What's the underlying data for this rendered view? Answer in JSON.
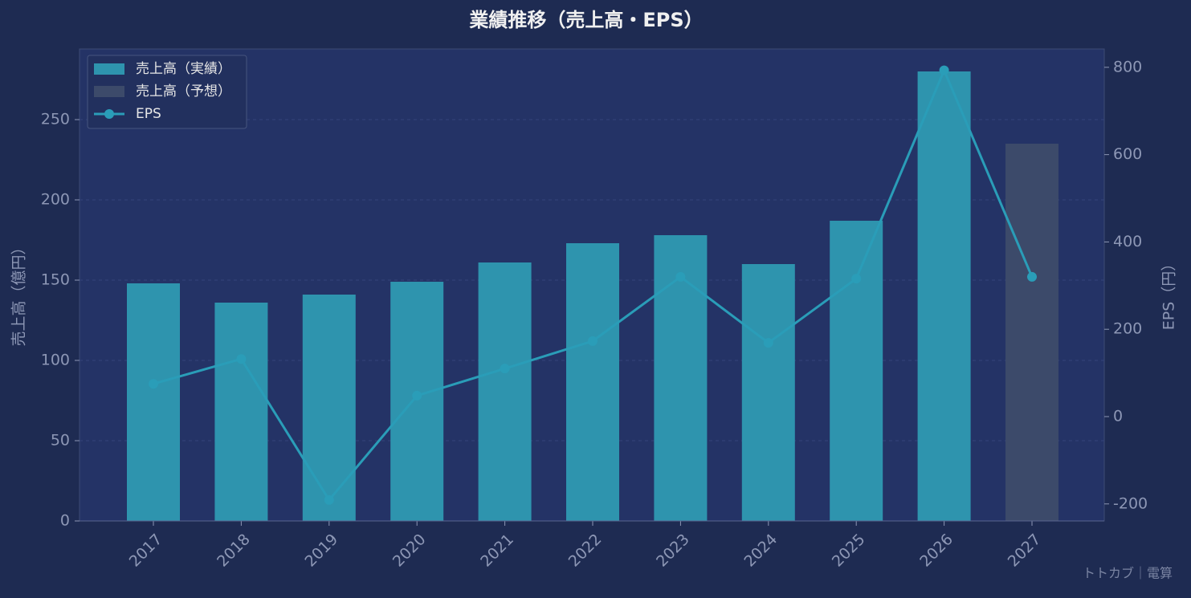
{
  "chart_data": {
    "type": "bar-line",
    "title": "業績推移（売上高・EPS）",
    "y_label": "売上高（億円）",
    "y2_label": "EPS（円）",
    "watermark": "トトカブ｜電算",
    "categories": [
      "2017",
      "2018",
      "2019",
      "2020",
      "2021",
      "2022",
      "2023",
      "2024",
      "2025",
      "2026",
      "2027"
    ],
    "series": [
      {
        "name": "売上高（実績）",
        "type": "bar",
        "color": "#2e94ae",
        "values": [
          148,
          136,
          141,
          149,
          161,
          173,
          178,
          160,
          187,
          280,
          null
        ]
      },
      {
        "name": "売上高（予想）",
        "type": "bar",
        "color": "#3c4a6a",
        "values": [
          null,
          null,
          null,
          null,
          null,
          null,
          null,
          null,
          null,
          null,
          235
        ]
      },
      {
        "name": "EPS",
        "type": "line",
        "axis": "y2",
        "color": "#2a9db8",
        "values": [
          75,
          132,
          -191,
          48,
          110,
          173,
          320,
          169,
          316,
          793,
          320
        ]
      }
    ],
    "ylim": [
      0,
      294
    ],
    "yticks": [
      0,
      50,
      100,
      150,
      200,
      250
    ],
    "y2lim": [
      -239,
      842
    ],
    "y2ticks": [
      -200,
      0,
      200,
      400,
      600,
      800
    ],
    "grid": true,
    "legend": "upper-left"
  }
}
